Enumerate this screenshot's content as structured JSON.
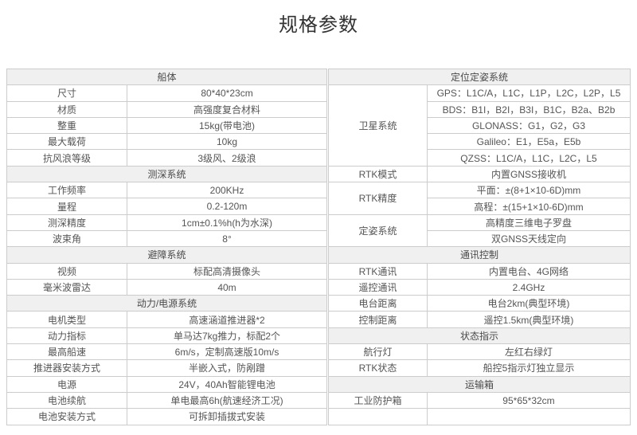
{
  "page": {
    "title": "规格参数"
  },
  "colors": {
    "section_header_bg": "#f0f0f0",
    "table_border": "#cccccc",
    "text": "#555555",
    "title_text": "#333333"
  },
  "tables": {
    "left": {
      "rows": [
        {
          "type": "header",
          "label": "船体"
        },
        {
          "type": "data",
          "label": "尺寸",
          "value": "80*40*23cm"
        },
        {
          "type": "data",
          "label": "材质",
          "value": "高强度复合材料"
        },
        {
          "type": "data",
          "label": "整重",
          "value": "15kg(带电池)"
        },
        {
          "type": "data",
          "label": "最大载荷",
          "value": "10kg"
        },
        {
          "type": "data",
          "label": "抗风浪等级",
          "value": "3级风、2级浪"
        },
        {
          "type": "header",
          "label": "测深系统"
        },
        {
          "type": "data",
          "label": "工作频率",
          "value": "200KHz"
        },
        {
          "type": "data",
          "label": "量程",
          "value": "0.2-120m"
        },
        {
          "type": "data",
          "label": "测深精度",
          "value": "1cm±0.1%h(h为水深)"
        },
        {
          "type": "data",
          "label": "波束角",
          "value": "8°"
        },
        {
          "type": "header",
          "label": "避障系统"
        },
        {
          "type": "data",
          "label": "视频",
          "value": "标配高清摄像头"
        },
        {
          "type": "data",
          "label": "毫米波雷达",
          "value": "40m"
        },
        {
          "type": "header",
          "label": "动力/电源系统"
        },
        {
          "type": "data",
          "label": "电机类型",
          "value": "高速涵道推进器*2"
        },
        {
          "type": "data",
          "label": "动力指标",
          "value": "单马达7kg推力，标配2个"
        },
        {
          "type": "data",
          "label": "最高船速",
          "value": "6m/s，定制高速版10m/s"
        },
        {
          "type": "data",
          "label": "推进器安装方式",
          "value": "半嵌入式，防剐蹭"
        },
        {
          "type": "data",
          "label": "电源",
          "value": "24V，40Ah智能锂电池"
        },
        {
          "type": "data",
          "label": "电池续航",
          "value": "单电最高6h(航速经济工况)"
        },
        {
          "type": "data",
          "label": "电池安装方式",
          "value": "可拆卸插拔式安装"
        }
      ]
    },
    "right": {
      "rows": [
        {
          "type": "header",
          "label": "定位定姿系统"
        },
        {
          "type": "data",
          "label": "卫星系统",
          "labelRowspan": 5,
          "value": "GPS：L1C/A，L1C，L1P，L2C，L2P，L5"
        },
        {
          "type": "cont",
          "value": "BDS：B1I，B2I，B3I，B1C，B2a、B2b"
        },
        {
          "type": "cont",
          "value": "GLONASS：G1，G2，G3"
        },
        {
          "type": "cont",
          "value": "Galileo：E1，E5a，E5b"
        },
        {
          "type": "cont",
          "value": "QZSS：L1C/A，L1C，L2C，L5"
        },
        {
          "type": "data",
          "label": "RTK模式",
          "value": "内置GNSS接收机"
        },
        {
          "type": "data",
          "label": "RTK精度",
          "labelRowspan": 2,
          "value": "平面：±(8+1×10-6D)mm"
        },
        {
          "type": "cont",
          "value": "高程：±(15+1×10-6D)mm"
        },
        {
          "type": "data",
          "label": "定姿系统",
          "labelRowspan": 2,
          "value": "高精度三维电子罗盘"
        },
        {
          "type": "cont",
          "value": "双GNSS天线定向"
        },
        {
          "type": "header",
          "label": "通讯控制"
        },
        {
          "type": "data",
          "label": "RTK通讯",
          "value": "内置电台、4G网络"
        },
        {
          "type": "data",
          "label": "遥控通讯",
          "value": "2.4GHz"
        },
        {
          "type": "data",
          "label": "电台距离",
          "value": "电台2km(典型环境)"
        },
        {
          "type": "data",
          "label": "控制距离",
          "value": "遥控1.5km(典型环境)"
        },
        {
          "type": "header",
          "label": "状态指示"
        },
        {
          "type": "data",
          "label": "航行灯",
          "value": "左红右绿灯"
        },
        {
          "type": "data",
          "label": "RTK状态",
          "value": "船控5指示灯独立显示"
        },
        {
          "type": "header",
          "label": "运输箱"
        },
        {
          "type": "data",
          "label": "工业防护箱",
          "value": "95*65*32cm"
        },
        {
          "type": "data",
          "label": "",
          "value": ""
        }
      ]
    }
  }
}
